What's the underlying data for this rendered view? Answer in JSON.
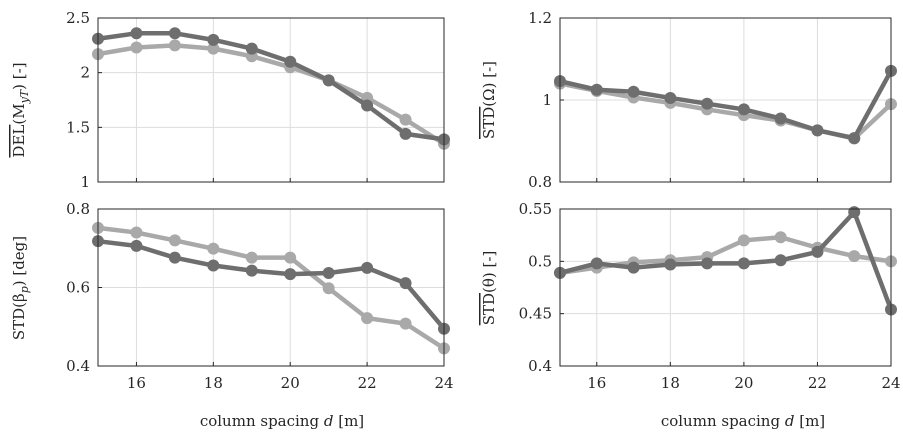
{
  "colors": {
    "dark": "#6e6e6e",
    "light": "#a9a9a9",
    "grid": "#dddddd",
    "axis": "#262626"
  },
  "chart_data": [
    {
      "type": "line",
      "title": "",
      "xlabel": "",
      "ylabel": "DEL(M_yT) [-]",
      "ylabel_overline": "DEL",
      "ylabel_rest": "(M",
      "ylabel_sub": "yT",
      "ylabel_close": ") [-]",
      "xlim": [
        15,
        24
      ],
      "ylim": [
        1,
        2.5
      ],
      "grid": true,
      "xticks": [
        16,
        18,
        20,
        22,
        24
      ],
      "yticks": [
        1,
        1.5,
        2,
        2.5
      ],
      "ytick_labels": [
        "1",
        "1.5",
        "2",
        "2.5"
      ],
      "x": [
        15,
        16,
        17,
        18,
        19,
        20,
        21,
        22,
        23,
        24
      ],
      "series": [
        {
          "values": [
            2.17,
            2.23,
            2.25,
            2.22,
            2.15,
            2.05,
            1.93,
            1.77,
            1.57,
            1.35
          ],
          "color": "#a9a9a9"
        },
        {
          "values": [
            2.31,
            2.36,
            2.36,
            2.3,
            2.22,
            2.1,
            1.93,
            1.7,
            1.44,
            1.39
          ],
          "color": "#6e6e6e"
        }
      ]
    },
    {
      "type": "line",
      "title": "",
      "xlabel": "",
      "ylabel": "STD(Ω) [-]",
      "ylabel_overline": "STD",
      "ylabel_rest": "(Ω) [-]",
      "xlim": [
        15,
        24
      ],
      "ylim": [
        0.8,
        1.2
      ],
      "grid": true,
      "xticks": [
        16,
        18,
        20,
        22,
        24
      ],
      "yticks": [
        0.8,
        1,
        1.2
      ],
      "ytick_labels": [
        "0.8",
        "1",
        "1.2"
      ],
      "x": [
        15,
        16,
        17,
        18,
        19,
        20,
        21,
        22,
        23,
        24
      ],
      "series": [
        {
          "values": [
            1.04,
            1.022,
            1.006,
            0.993,
            0.977,
            0.963,
            0.95,
            0.926,
            0.906,
            0.99
          ],
          "color": "#a9a9a9"
        },
        {
          "values": [
            1.046,
            1.025,
            1.02,
            1.005,
            0.991,
            0.977,
            0.955,
            0.926,
            0.907,
            1.071
          ],
          "color": "#6e6e6e"
        }
      ]
    },
    {
      "type": "line",
      "title": "",
      "xlabel": "column spacing d [m]",
      "xlabel_text": "column spacing ",
      "xlabel_var": "d",
      "xlabel_unit": " [m]",
      "ylabel": "STD(β_p) [deg]",
      "ylabel_pre": "STD(β",
      "ylabel_sub": "p",
      "ylabel_close": ") [deg]",
      "xlim": [
        15,
        24
      ],
      "ylim": [
        0.4,
        0.8
      ],
      "grid": true,
      "xticks": [
        16,
        18,
        20,
        22,
        24
      ],
      "yticks": [
        0.4,
        0.6,
        0.8
      ],
      "ytick_labels": [
        "0.4",
        "0.6",
        "0.8"
      ],
      "x": [
        15,
        16,
        17,
        18,
        19,
        20,
        21,
        22,
        23,
        24
      ],
      "series": [
        {
          "values": [
            0.752,
            0.74,
            0.72,
            0.699,
            0.676,
            0.676,
            0.598,
            0.522,
            0.508,
            0.445
          ],
          "color": "#a9a9a9"
        },
        {
          "values": [
            0.718,
            0.706,
            0.676,
            0.656,
            0.643,
            0.634,
            0.637,
            0.65,
            0.611,
            0.495
          ],
          "color": "#6e6e6e"
        }
      ]
    },
    {
      "type": "line",
      "title": "",
      "xlabel": "column spacing d [m]",
      "xlabel_text": "column spacing ",
      "xlabel_var": "d",
      "xlabel_unit": " [m]",
      "ylabel": "STD(θ) [-]",
      "ylabel_overline": "STD",
      "ylabel_rest": "(θ) [-]",
      "xlim": [
        15,
        24
      ],
      "ylim": [
        0.4,
        0.55
      ],
      "grid": true,
      "xticks": [
        16,
        18,
        20,
        22,
        24
      ],
      "yticks": [
        0.4,
        0.45,
        0.5,
        0.55
      ],
      "ytick_labels": [
        "0.4",
        "0.45",
        "0.5",
        "0.55"
      ],
      "x": [
        15,
        16,
        17,
        18,
        19,
        20,
        21,
        22,
        23,
        24
      ],
      "series": [
        {
          "values": [
            0.489,
            0.494,
            0.499,
            0.501,
            0.504,
            0.52,
            0.523,
            0.513,
            0.505,
            0.5
          ],
          "color": "#a9a9a9"
        },
        {
          "values": [
            0.489,
            0.498,
            0.494,
            0.497,
            0.498,
            0.498,
            0.501,
            0.509,
            0.547,
            0.454
          ],
          "color": "#6e6e6e"
        }
      ]
    }
  ]
}
